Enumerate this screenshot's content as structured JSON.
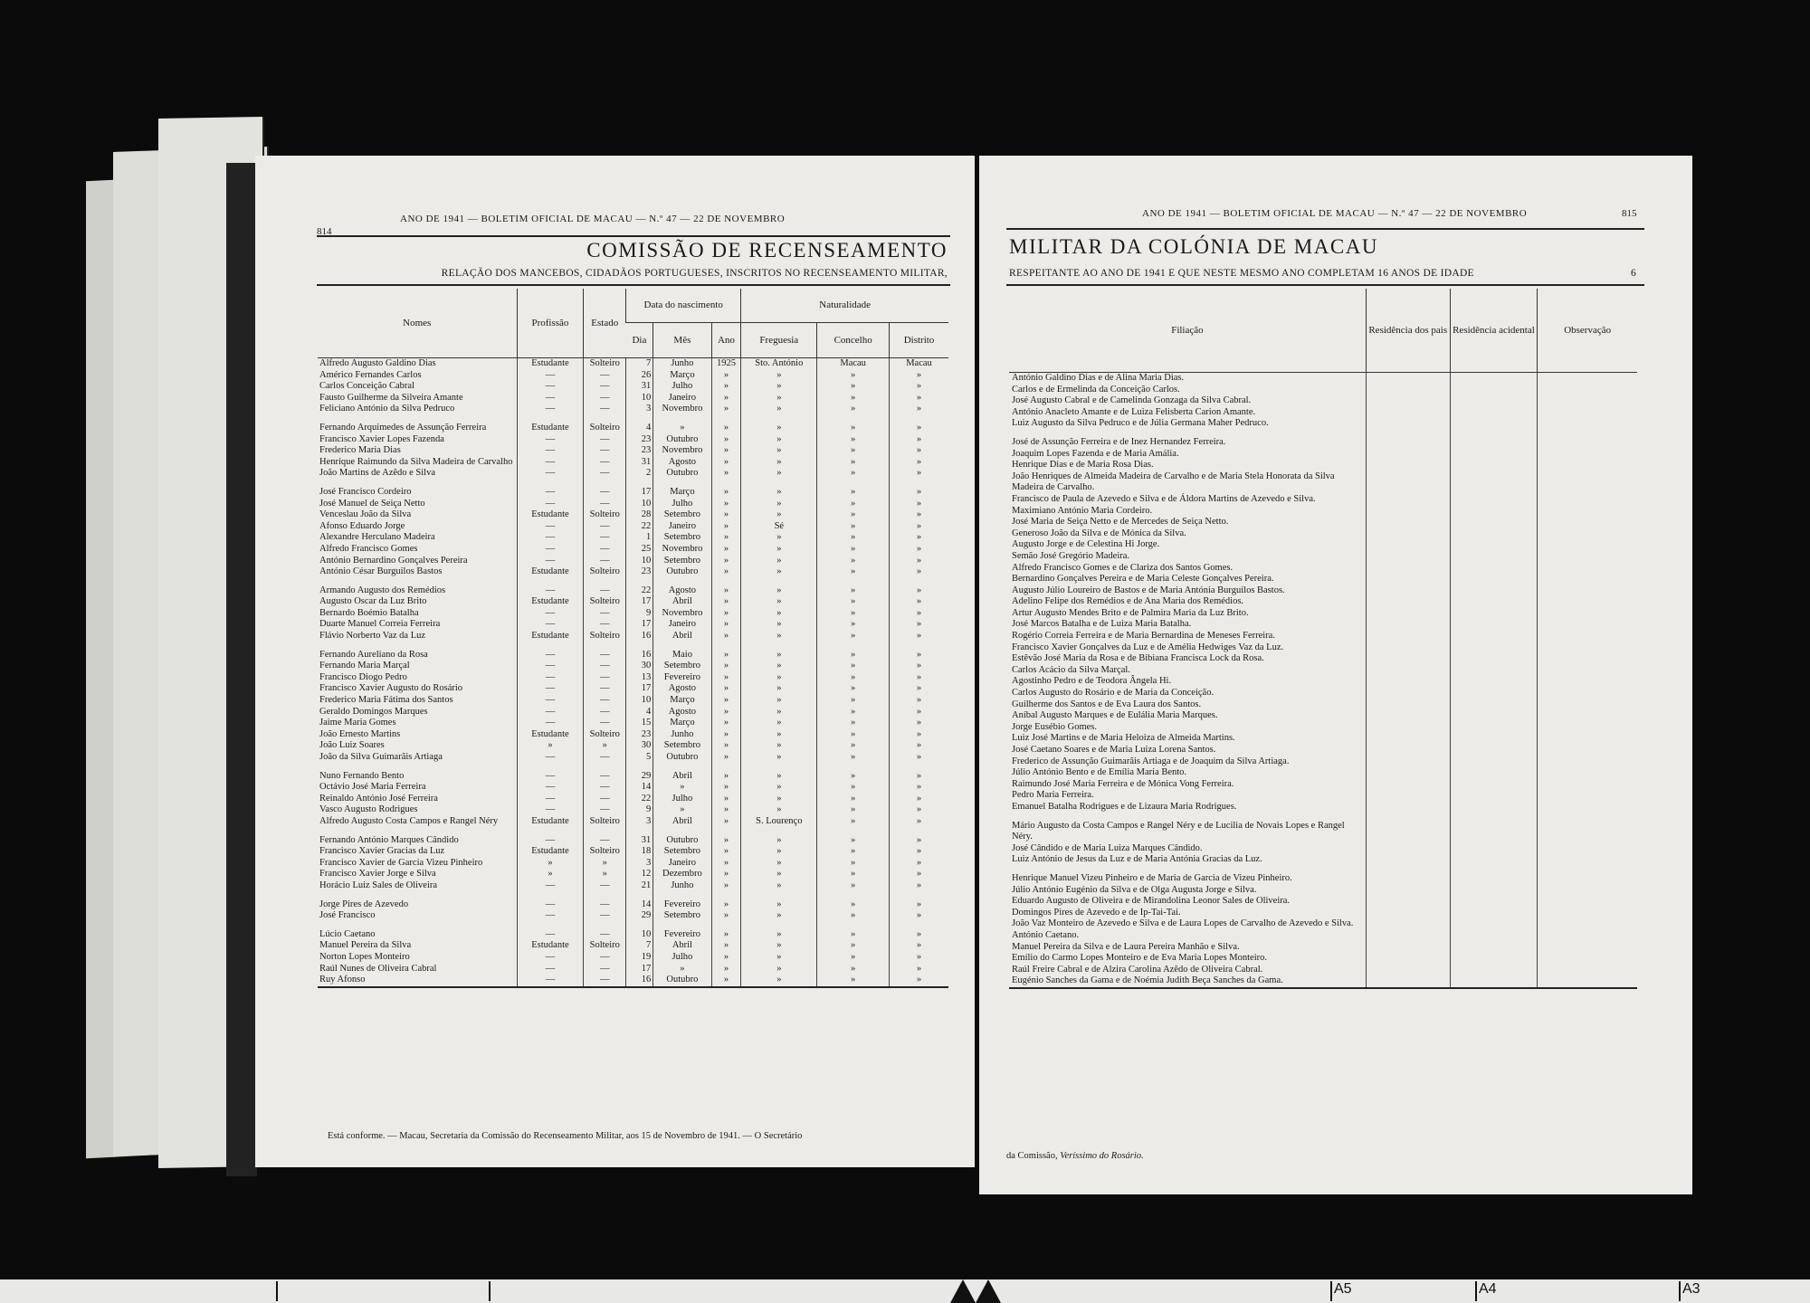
{
  "left_page": {
    "page_number": "814",
    "running_head": "Ano de 1941 — Boletim Oficial de Macau — N.º 47 — 22 de Novembro",
    "title": "COMISSÃO DE RECENSEAMENTO",
    "subtitle": "RELAÇÃO DOS MANCEBOS, CIDADÃOS PORTUGUESES, INSCRITOS NO RECENSEAMENTO MILITAR,",
    "headers": {
      "nomes": "Nomes",
      "profissao": "Profissão",
      "estado": "Estado",
      "data_nascimento": "Data do nascimento",
      "dia": "Dia",
      "mes": "Mês",
      "ano": "Ano",
      "naturalidade": "Naturalidade",
      "freguesia": "Freguesia",
      "concelho": "Concelho",
      "distrito": "Distrito"
    },
    "groups": [
      [
        [
          "Alfredo Augusto Galdino Dias",
          "Estudante",
          "Solteiro",
          "7",
          "Junho",
          "1925",
          "Sto. António",
          "Macau",
          "Macau"
        ],
        [
          "Américo Fernandes Carlos",
          "—",
          "—",
          "26",
          "Março",
          "»",
          "»",
          "»",
          "»"
        ],
        [
          "Carlos Conceição Cabral",
          "—",
          "—",
          "31",
          "Julho",
          "»",
          "»",
          "»",
          "»"
        ],
        [
          "Fausto Guilherme da Silveira Amante",
          "—",
          "—",
          "10",
          "Janeiro",
          "»",
          "»",
          "»",
          "»"
        ],
        [
          "Feliciano António da Silva Pedruco",
          "—",
          "—",
          "3",
          "Novembro",
          "»",
          "»",
          "»",
          "»"
        ]
      ],
      [
        [
          "Fernando Arquimedes de Assunção Ferreira",
          "Estudante",
          "Solteiro",
          "4",
          "»",
          "»",
          "»",
          "»",
          "»"
        ],
        [
          "Francisco Xavier Lopes Fazenda",
          "—",
          "—",
          "23",
          "Outubro",
          "»",
          "»",
          "»",
          "»"
        ],
        [
          "Frederico Maria Dias",
          "—",
          "—",
          "23",
          "Novembro",
          "»",
          "»",
          "»",
          "»"
        ],
        [
          "Henrique Raimundo da Silva Madeira de Carvalho",
          "—",
          "—",
          "31",
          "Agosto",
          "»",
          "»",
          "»",
          "»"
        ],
        [
          "João Martins de Azêdo e Silva",
          "—",
          "—",
          "2",
          "Outubro",
          "»",
          "»",
          "»",
          "»"
        ]
      ],
      [
        [
          "José Francisco Cordeiro",
          "—",
          "—",
          "17",
          "Março",
          "»",
          "»",
          "»",
          "»"
        ],
        [
          "José Manuel de Seiça Netto",
          "—",
          "—",
          "10",
          "Julho",
          "»",
          "»",
          "»",
          "»"
        ],
        [
          "Venceslau João da Silva",
          "Estudante",
          "Solteiro",
          "28",
          "Setembro",
          "»",
          "»",
          "»",
          "»"
        ],
        [
          "Afonso Eduardo Jorge",
          "—",
          "—",
          "22",
          "Janeiro",
          "»",
          "Sé",
          "»",
          "»"
        ],
        [
          "Alexandre Herculano Madeira",
          "—",
          "—",
          "1",
          "Setembro",
          "»",
          "»",
          "»",
          "»"
        ],
        [
          "Alfredo Francisco Gomes",
          "—",
          "—",
          "25",
          "Novembro",
          "»",
          "»",
          "»",
          "»"
        ],
        [
          "António Bernardino Gonçalves Pereira",
          "—",
          "—",
          "10",
          "Setembro",
          "»",
          "»",
          "»",
          "»"
        ],
        [
          "António César Burguilos Bastos",
          "Estudante",
          "Solteiro",
          "23",
          "Outubro",
          "»",
          "»",
          "»",
          "»"
        ]
      ],
      [
        [
          "Armando Augusto dos Remédios",
          "—",
          "—",
          "22",
          "Agosto",
          "»",
          "»",
          "»",
          "»"
        ],
        [
          "Augusto Oscar da Luz Brito",
          "Estudante",
          "Solteiro",
          "17",
          "Abril",
          "»",
          "»",
          "»",
          "»"
        ],
        [
          "Bernardo Boémio Batalha",
          "—",
          "—",
          "9",
          "Novembro",
          "»",
          "»",
          "»",
          "»"
        ],
        [
          "Duarte Manuel Correia Ferreira",
          "—",
          "—",
          "17",
          "Janeiro",
          "»",
          "»",
          "»",
          "»"
        ],
        [
          "Flávio Norberto Vaz da Luz",
          "Estudante",
          "Solteiro",
          "16",
          "Abril",
          "»",
          "»",
          "»",
          "»"
        ]
      ],
      [
        [
          "Fernando Aureliano da Rosa",
          "—",
          "—",
          "16",
          "Maio",
          "»",
          "»",
          "»",
          "»"
        ],
        [
          "Fernando Maria Marçal",
          "—",
          "—",
          "30",
          "Setembro",
          "»",
          "»",
          "»",
          "»"
        ],
        [
          "Francisco Diogo Pedro",
          "—",
          "—",
          "13",
          "Fevereiro",
          "»",
          "»",
          "»",
          "»"
        ],
        [
          "Francisco Xavier Augusto do Rosário",
          "—",
          "—",
          "17",
          "Agosto",
          "»",
          "»",
          "»",
          "»"
        ],
        [
          "Frederico Maria Fátima dos Santos",
          "—",
          "—",
          "10",
          "Março",
          "»",
          "»",
          "»",
          "»"
        ],
        [
          "Geraldo Domingos Marques",
          "—",
          "—",
          "4",
          "Agosto",
          "»",
          "»",
          "»",
          "»"
        ],
        [
          "Jaime Maria Gomes",
          "—",
          "—",
          "15",
          "Março",
          "»",
          "»",
          "»",
          "»"
        ],
        [
          "João Ernesto Martins",
          "Estudante",
          "Solteiro",
          "23",
          "Junho",
          "»",
          "»",
          "»",
          "»"
        ],
        [
          "João Luiz Soares",
          "»",
          "»",
          "30",
          "Setembro",
          "»",
          "»",
          "»",
          "»"
        ],
        [
          "João da Silva Guimarãis Artiaga",
          "—",
          "—",
          "5",
          "Outubro",
          "»",
          "»",
          "»",
          "»"
        ]
      ],
      [
        [
          "Nuno Fernando Bento",
          "—",
          "—",
          "29",
          "Abril",
          "»",
          "»",
          "»",
          "»"
        ],
        [
          "Octávio José Maria Ferreira",
          "—",
          "—",
          "14",
          "»",
          "»",
          "»",
          "»",
          "»"
        ],
        [
          "Reinaldo António José Ferreira",
          "—",
          "—",
          "22",
          "Julho",
          "»",
          "»",
          "»",
          "»"
        ],
        [
          "Vasco Augusto Rodrigues",
          "—",
          "—",
          "9",
          "»",
          "»",
          "»",
          "»",
          "»"
        ],
        [
          "Alfredo Augusto Costa Campos e Rangel Néry",
          "Estudante",
          "Solteiro",
          "3",
          "Abril",
          "»",
          "S. Lourenço",
          "»",
          "»"
        ]
      ],
      [
        [
          "Fernando António Marques Cândido",
          "—",
          "—",
          "31",
          "Outubro",
          "»",
          "»",
          "»",
          "»"
        ],
        [
          "Francisco Xavier Gracias da Luz",
          "Estudante",
          "Solteiro",
          "18",
          "Setembro",
          "»",
          "»",
          "»",
          "»"
        ],
        [
          "Francisco Xavier de Garcia Vizeu Pinheiro",
          "»",
          "»",
          "3",
          "Janeiro",
          "»",
          "»",
          "»",
          "»"
        ],
        [
          "Francisco Xavier Jorge e Silva",
          "»",
          "»",
          "12",
          "Dezembro",
          "»",
          "»",
          "»",
          "»"
        ],
        [
          "Horácio Luiz Sales de Oliveira",
          "—",
          "—",
          "21",
          "Junho",
          "»",
          "»",
          "»",
          "»"
        ]
      ],
      [
        [
          "Jorge Pires de Azevedo",
          "—",
          "—",
          "14",
          "Fevereiro",
          "»",
          "»",
          "»",
          "»"
        ],
        [
          "José Francisco",
          "—",
          "—",
          "29",
          "Setembro",
          "»",
          "»",
          "»",
          "»"
        ]
      ],
      [
        [
          "Lúcio Caetano",
          "—",
          "—",
          "10",
          "Fevereiro",
          "»",
          "»",
          "»",
          "»"
        ],
        [
          "Manuel Pereira da Silva",
          "Estudante",
          "Solteiro",
          "7",
          "Abril",
          "»",
          "»",
          "»",
          "»"
        ],
        [
          "Norton Lopes Monteiro",
          "—",
          "—",
          "19",
          "Julho",
          "»",
          "»",
          "»",
          "»"
        ],
        [
          "Raúl Nunes de Oliveira Cabral",
          "—",
          "—",
          "17",
          "»",
          "»",
          "»",
          "»",
          "»"
        ],
        [
          "Ruy Afonso",
          "—",
          "—",
          "16",
          "Outubro",
          "»",
          "»",
          "»",
          "»"
        ]
      ]
    ],
    "footer": "Está conforme. — Macau, Secretaria da Comissão do Recenseamento Militar, aos 15 de Novembro de 1941. — O Secretário"
  },
  "right_page": {
    "page_number": "815",
    "running_head": "Ano de 1941 — Boletim Oficial de Macau — N.º 47 — 22 de Novembro",
    "title": "MILITAR DA COLÓNIA DE MACAU",
    "subtitle": "RESPEITANTE AO ANO DE 1941 E QUE NESTE MESMO ANO COMPLETAM 16 ANOS DE IDADE",
    "table_number": "6",
    "headers": {
      "filiacao": "Filiação",
      "residencia_pais": "Residência dos pais",
      "residencia_acidental": "Residência acidental",
      "observacao": "Observação"
    },
    "groups": [
      [
        "António Galdino Dias e de Alina Maria Dias.",
        "Carlos e de Ermelinda da Conceição Carlos.",
        "José Augusto Cabral e de Camelinda Gonzaga da Silva Cabral.",
        "António Anacleto Amante e de Luiza Felisberta Carion Amante.",
        "Luiz Augusto da Silva Pedruco e de Júlia Germana Maher Pedruco."
      ],
      [
        "José de Assunção Ferreira e de Inez Hernandez Ferreira.",
        "Joaquim Lopes Fazenda e de Maria Amália.",
        "Henrique Dias e de Maria Rosa Dias.",
        "João Henriques de Almeida Madeira de Carvalho e de Maria Stela Honorata da Silva Madeira de Carvalho.",
        "Francisco de Paula de Azevedo e Silva e de Áldora Martins de Azevedo e Silva.",
        "Maximiano António Maria Cordeiro.",
        "José Maria de Seiça Netto e de Mercedes de Seiça Netto.",
        "Generoso João da Silva e de Mónica da Silva.",
        "Augusto Jorge e de Celestina Hi Jorge.",
        "Semão José Gregório Madeira.",
        "Alfredo Francisco Gomes e de Clariza dos Santos Gomes.",
        "Bernardino Gonçalves Pereira e de Maria Celeste Gonçalves Pereira.",
        "Augusto Júlio Loureiro de Bastos e de Maria Antónia Burguilos Bastos.",
        "Adelino Felipe dos Remédios e de Ana Maria dos Remédios.",
        "Artur Augusto Mendes Brito e de Palmira Maria da Luz Brito.",
        "José Marcos Batalha e de Luiza Maria Batalha.",
        "Rogério Correia Ferreira e de Maria Bernardina de Meneses Ferreira.",
        "Francisco Xavier Gonçalves da Luz e de Amélia Hedwiges Vaz da Luz.",
        "Estêvão José Maria da Rosa e de Bibiana Francisca Lock da Rosa.",
        "Carlos Acácio da Silva Marçal.",
        "Agostinho Pedro e de Teodora Ângela Hi.",
        "Carlos Augusto do Rosário e de Maria da Conceição.",
        "Guilherme dos Santos e de Eva Laura dos Santos.",
        "Aníbal Augusto Marques e de Eulália Maria Marques.",
        "Jorge Eusébio Gomes.",
        "Luiz José Martins e de Maria Heloiza de Almeida Martins.",
        "José Caetano Soares e de Maria Luiza Lorena Santos.",
        "Frederico de Assunção Guimarãis Artiaga e de Joaquim da Silva Artiaga.",
        "Júlio António Bento e de Emília Maria Bento.",
        "Raimundo José Maria Ferreira e de Mónica Vong Ferreira.",
        "Pedro Maria Ferreira.",
        "Emanuel Batalha Rodrigues e de Lizaura Maria Rodrigues."
      ],
      [
        "Mário Augusto da Costa Campos e Rangel Néry e de Lucilia de Novais Lopes e Rangel Néry.",
        "José Cândido e de Maria Luiza Marques Cândido.",
        "Luiz António de Jesus da Luz e de Maria Antónia Gracias da Luz."
      ],
      [
        "Henrique Manuel Vizeu Pinheiro e de Maria de Garcia de Vizeu Pinheiro.",
        "Júlio António Eugénio da Silva e de Olga Augusta Jorge e Silva.",
        "Eduardo Augusto de Oliveira e de Mirandolina Leonor Sales de Oliveira.",
        "Domingos Pires de Azevedo e de Ip-Tai-Tai.",
        "João Vaz Monteiro de Azevedo e Silva e de Laura Lopes de Carvalho de Azevedo e Silva.",
        "António Caetano.",
        "Manuel Pereira da Silva e de Laura Pereira Manhão e Silva.",
        "Emílio do Carmo Lopes Monteiro e de Eva Maria Lopes Monteiro.",
        "Raúl Freire Cabral e de Alzira Carolina Azêdo de Oliveira Cabral.",
        "Eugénio Sanches da Gama e de Noémia Judith Beça Sanches da Gama."
      ]
    ],
    "footer_text": "da Comissão,",
    "footer_signature": "Veríssimo do Rosário."
  },
  "film_marks": [
    "A5",
    "A4",
    "A3"
  ]
}
